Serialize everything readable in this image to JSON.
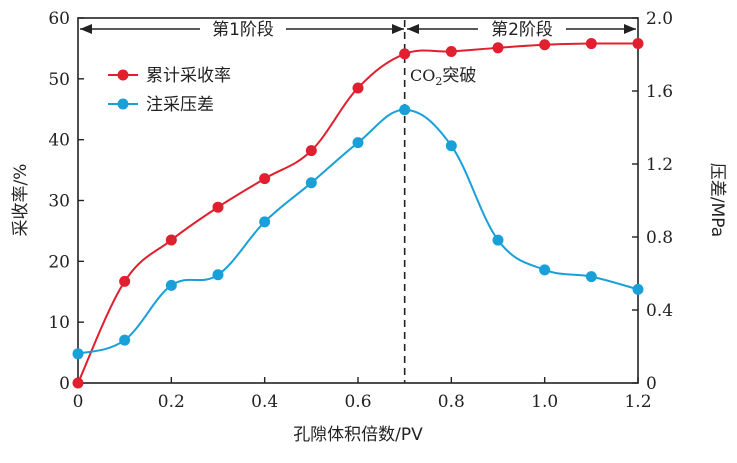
{
  "chart_data": {
    "type": "line",
    "x": [
      0,
      0.1,
      0.2,
      0.3,
      0.4,
      0.5,
      0.6,
      0.7,
      0.8,
      0.9,
      1.0,
      1.1,
      1.2
    ],
    "xlabel": "孔隙体积倍数/PV",
    "xlim": [
      0,
      1.2
    ],
    "xticks": [
      0,
      0.2,
      0.4,
      0.6,
      0.8,
      1.0,
      1.2
    ],
    "xtick_labels": [
      "0",
      "0.2",
      "0.4",
      "0.6",
      "0.8",
      "1.0",
      "1.2"
    ],
    "ylabel_left": "采收率/%",
    "ylim_left": [
      0,
      60
    ],
    "yticks_left": [
      "0",
      "10",
      "20",
      "30",
      "40",
      "50",
      "60"
    ],
    "ylabel_right": "压差/MPa",
    "ylim_right": [
      0,
      2.0
    ],
    "yticks_right": [
      "0",
      "0.4",
      "0.8",
      "1.2",
      "1.6",
      "2.0"
    ],
    "series": [
      {
        "name": "累计采收率",
        "axis": "left",
        "color": "#e0202e",
        "values": [
          0,
          16.7,
          23.5,
          28.9,
          33.6,
          38.2,
          48.5,
          54.1,
          54.5,
          55.1,
          55.6,
          55.8,
          55.8
        ]
      },
      {
        "name": "注采压差",
        "axis": "right",
        "color": "#1aa0d8",
        "values": [
          0.16,
          0.235,
          0.535,
          0.593,
          0.883,
          1.097,
          1.317,
          1.497,
          1.3,
          0.783,
          0.62,
          0.583,
          0.513
        ]
      }
    ],
    "annotations": {
      "phase1": "第1阶段",
      "phase2": "第2阶段",
      "breakthrough_main": "CO",
      "breakthrough_sub": "2",
      "breakthrough_suffix": "突破",
      "breakthrough_x": 0.7
    },
    "legend_position": "top-left",
    "grid": false
  }
}
